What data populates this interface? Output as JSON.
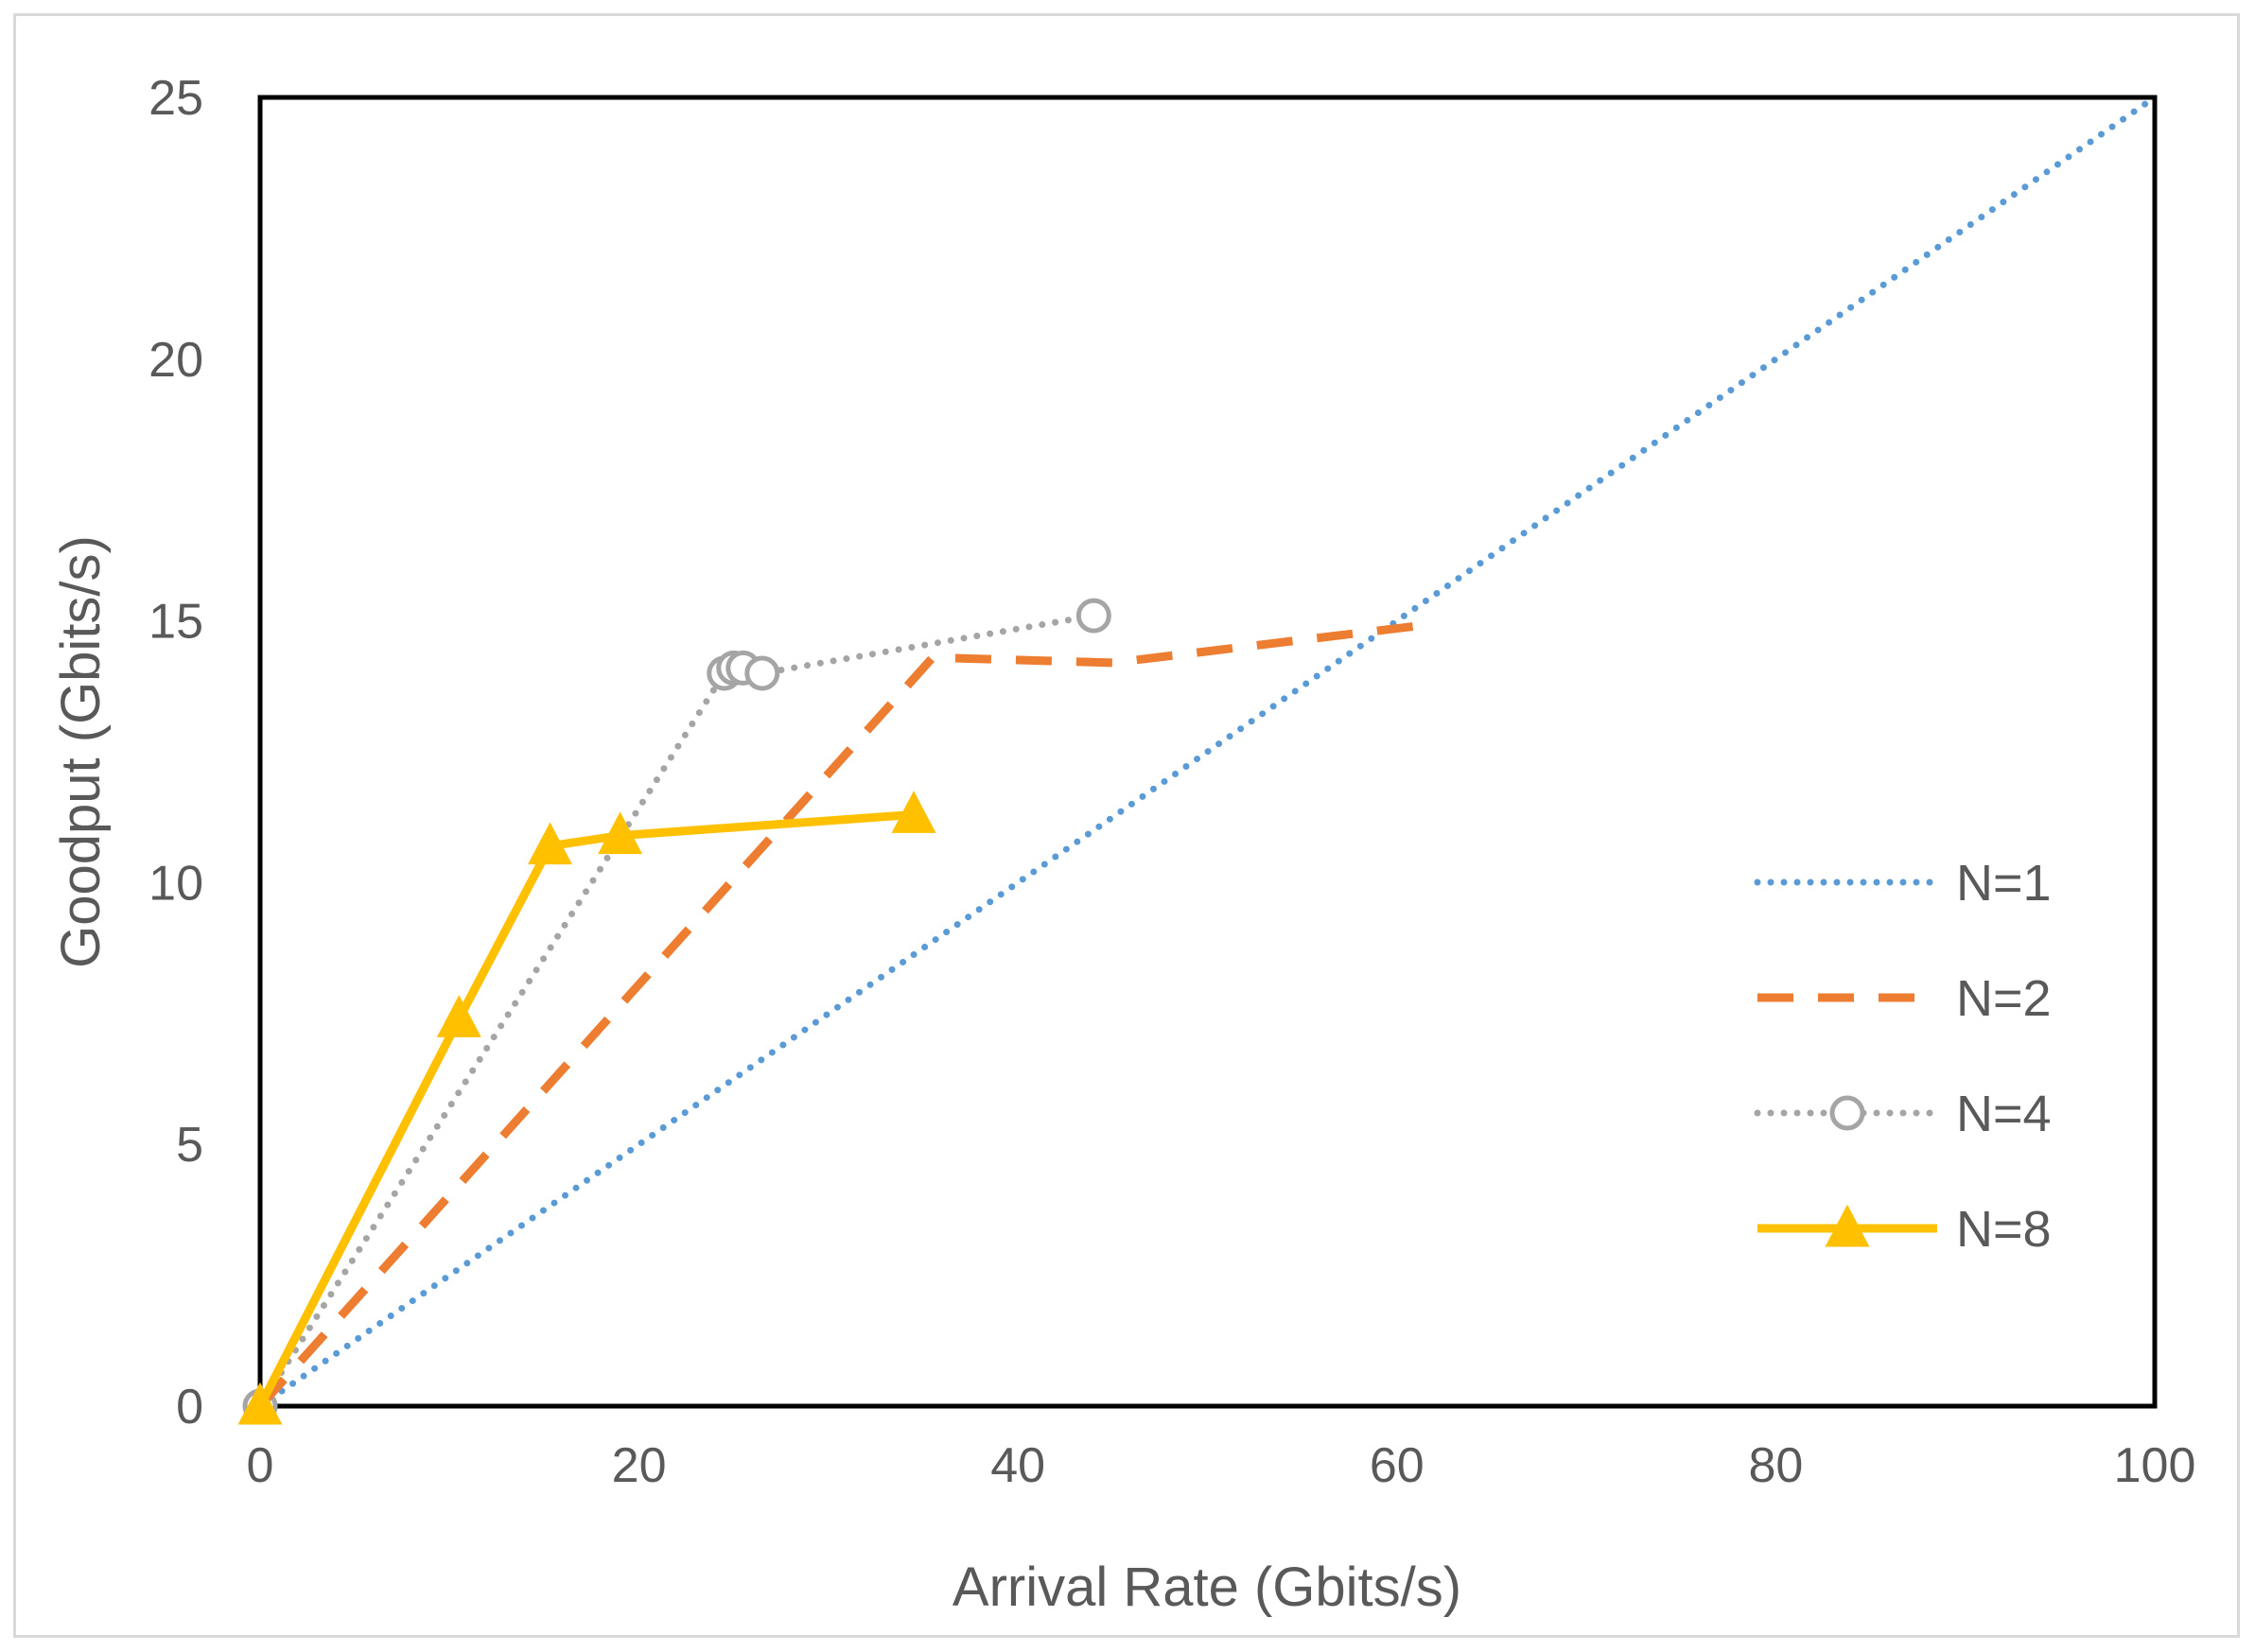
{
  "chart_data": {
    "type": "line",
    "title": "",
    "xlabel": "Arrival Rate (Gbits/s)",
    "ylabel": "Goodput (Gbits/s)",
    "xlim": [
      0,
      100
    ],
    "ylim": [
      0,
      25
    ],
    "xticks": [
      0,
      20,
      40,
      60,
      80,
      100
    ],
    "yticks": [
      0,
      5,
      10,
      15,
      20,
      25
    ],
    "grid": false,
    "legend_position": "right",
    "series": [
      {
        "name": "N=1",
        "style": "dotted",
        "color": "#5b9bd5",
        "marker": "none",
        "points": [
          [
            0,
            0
          ],
          [
            100,
            25
          ]
        ]
      },
      {
        "name": "N=2",
        "style": "dashed",
        "color": "#ed7d31",
        "marker": "none",
        "points": [
          [
            0,
            0
          ],
          [
            35.5,
            14.3
          ],
          [
            45,
            14.2
          ],
          [
            61,
            14.9
          ]
        ]
      },
      {
        "name": "N=4",
        "style": "dotted",
        "color": "#a5a5a5",
        "marker": "circle",
        "points": [
          [
            0,
            0
          ],
          [
            24.5,
            14.0
          ],
          [
            25.0,
            14.1
          ],
          [
            25.5,
            14.1
          ],
          [
            26.5,
            14.0
          ],
          [
            44,
            15.1
          ]
        ]
      },
      {
        "name": "N=8",
        "style": "solid",
        "color": "#ffc000",
        "marker": "triangle",
        "points": [
          [
            0,
            0
          ],
          [
            10.5,
            7.4
          ],
          [
            15.3,
            10.7
          ],
          [
            19,
            10.9
          ],
          [
            34.5,
            11.3
          ]
        ]
      }
    ]
  }
}
